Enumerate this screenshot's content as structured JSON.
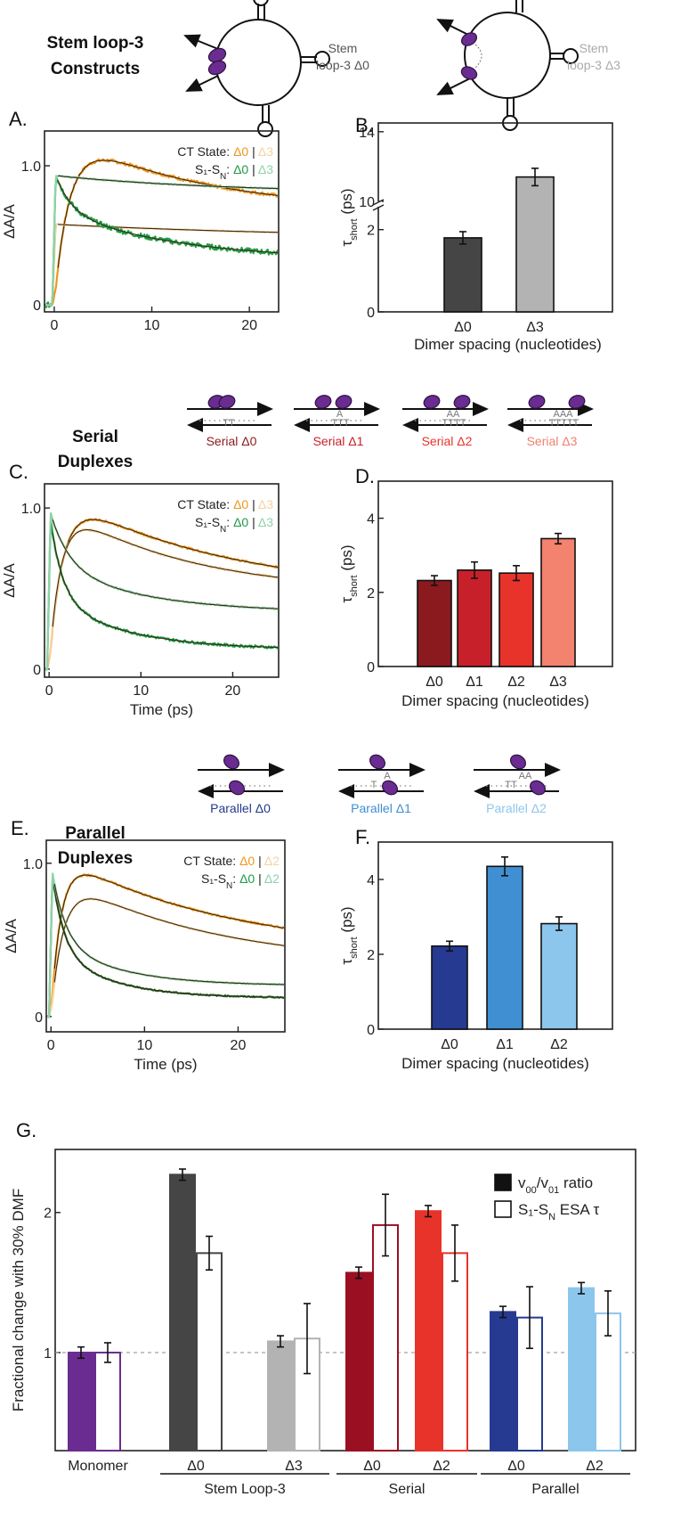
{
  "rows": {
    "stem": {
      "title_line1": "Stem loop-3",
      "title_line2": "Constructs",
      "labels": [
        {
          "line1": "Stem",
          "line2": "loop-3 Δ0",
          "color": "#555555"
        },
        {
          "line1": "Stem",
          "line2": "loop-3 Δ3",
          "color": "#aaaaaa"
        }
      ]
    },
    "serial": {
      "title_line1": "Serial",
      "title_line2": "Duplexes",
      "labels": [
        {
          "text": "Serial Δ0",
          "color": "#8b1a1a"
        },
        {
          "text": "Serial Δ1",
          "color": "#c8202a"
        },
        {
          "text": "Serial Δ2",
          "color": "#e8332b"
        },
        {
          "text": "Serial Δ3",
          "color": "#f08070"
        }
      ],
      "bases": [
        {
          "top": "",
          "bottom": "TT"
        },
        {
          "top": "A",
          "bottom": "TTT"
        },
        {
          "top": "AA",
          "bottom": "TTTT"
        },
        {
          "top": "AAA",
          "bottom": "TTTTT"
        }
      ]
    },
    "parallel": {
      "title_line1": "Parallel",
      "title_line2": "Duplexes",
      "labels": [
        {
          "text": "Parallel Δ0",
          "color": "#233a8c"
        },
        {
          "text": "Parallel Δ1",
          "color": "#3f8fd2"
        },
        {
          "text": "Parallel Δ2",
          "color": "#8cc6ec"
        }
      ],
      "bases": [
        {
          "top": "",
          "bottom": ""
        },
        {
          "top": "A",
          "bottom": "T"
        },
        {
          "top": "AA",
          "bottom": "TT"
        }
      ]
    }
  },
  "chart_data": [
    {
      "id": "A",
      "panel_letter": "A.",
      "type": "line",
      "ylabel": "ΔA/A",
      "xlabel": "",
      "xlim": [
        -1,
        23
      ],
      "ylim": [
        -0.05,
        1.25
      ],
      "xticks": [
        0,
        10,
        20
      ],
      "yticks": [
        {
          "v": 0,
          "label": "0"
        },
        {
          "v": 1.0,
          "label": "1.0"
        }
      ],
      "legend": {
        "row1_label": "CT State:",
        "row2_label": "S₁-S",
        "row2_sub": "N",
        "row2_colon": ":",
        "sep": "|",
        "d0": "Δ0",
        "d3": "Δ3",
        "colors": {
          "ct_d0": "#f0961e",
          "ct_d3": "#f7d2a0",
          "s_d0": "#1f9c45",
          "s_d3": "#8fd3a9"
        }
      },
      "series": [
        {
          "name": "CT Δ0",
          "color": "#f0961e",
          "noise": 0.012,
          "width": 2.2
        },
        {
          "name": "CT Δ3",
          "color": "#f7d2a0",
          "noise": 0.004,
          "width": 2.2
        },
        {
          "name": "S1-SN Δ0",
          "color": "#1f9c45",
          "noise": 0.018,
          "width": 2.2
        },
        {
          "name": "S1-SN Δ3",
          "color": "#8fd3a9",
          "noise": 0.004,
          "width": 2.2
        }
      ],
      "kinetics": {
        "ct0": {
          "rise": 1.6,
          "peak": 1.13,
          "plateau": 0.67,
          "decay": 14
        },
        "ct3": {
          "start": 0.58,
          "end": 0.47,
          "decay": 30
        },
        "s0": {
          "start": 0.92,
          "fast": 0.28,
          "fast_t": 1.5,
          "slow": 0.37,
          "slow_t": 12,
          "end": 0.37
        },
        "s3": {
          "start": 0.93,
          "end": 0.8,
          "decay": 18
        }
      }
    },
    {
      "id": "B",
      "panel_letter": "B.",
      "type": "bar",
      "ylabel_main": "τ",
      "ylabel_sub": "short",
      "ylabel_unit": " (ps)",
      "xlabel": "Dimer spacing (nucleotides)",
      "categories": [
        "Δ0",
        "Δ3"
      ],
      "values": [
        1.8,
        11.4
      ],
      "errors": [
        0.15,
        0.5
      ],
      "colors": [
        "#454545",
        "#b3b3b3"
      ],
      "broken_axis": true,
      "yticks": [
        "0",
        "2",
        "10",
        "14"
      ]
    },
    {
      "id": "C",
      "panel_letter": "C.",
      "type": "line",
      "ylabel": "ΔA/A",
      "xlabel": "Time (ps)",
      "xlim": [
        -0.5,
        25
      ],
      "ylim": [
        -0.05,
        1.15
      ],
      "xticks": [
        0,
        10,
        20
      ],
      "yticks": [
        {
          "v": 0,
          "label": "0"
        },
        {
          "v": 1.0,
          "label": "1.0"
        }
      ],
      "legend": {
        "row1_label": "CT State:",
        "row2_label": "S₁-S",
        "row2_sub": "N",
        "row2_colon": ":",
        "sep": "|",
        "d0": "Δ0",
        "d3": "Δ3",
        "colors": {
          "ct_d0": "#f0961e",
          "ct_d3": "#f7d2a0",
          "s_d0": "#1f9c45",
          "s_d3": "#8fd3a9"
        }
      },
      "series": [
        {
          "name": "CT Δ0",
          "color": "#f0961e"
        },
        {
          "name": "CT Δ3",
          "color": "#f7d2a0"
        },
        {
          "name": "S1-SN Δ0",
          "color": "#1f9c45"
        },
        {
          "name": "S1-SN Δ3",
          "color": "#8fd3a9"
        }
      ]
    },
    {
      "id": "D",
      "panel_letter": "D.",
      "type": "bar",
      "ylabel_main": "τ",
      "ylabel_sub": "short",
      "ylabel_unit": " (ps)",
      "xlabel": "Dimer spacing (nucleotides)",
      "ylim": [
        0,
        5
      ],
      "yticks": [
        0,
        2,
        4
      ],
      "categories": [
        "Δ0",
        "Δ1",
        "Δ2",
        "Δ3"
      ],
      "values": [
        2.32,
        2.6,
        2.52,
        3.45
      ],
      "errors": [
        0.13,
        0.22,
        0.2,
        0.14
      ],
      "colors": [
        "#8b1a1f",
        "#c8202a",
        "#e8332b",
        "#f3826f"
      ]
    },
    {
      "id": "E",
      "panel_letter": "E.",
      "type": "line",
      "ylabel": "ΔA/A",
      "xlabel": "Time (ps)",
      "xlim": [
        -0.5,
        25
      ],
      "ylim": [
        -0.1,
        1.15
      ],
      "xticks": [
        0,
        10,
        20
      ],
      "yticks": [
        {
          "v": 0,
          "label": "0"
        },
        {
          "v": 1.0,
          "label": "1.0"
        }
      ],
      "legend": {
        "row1_label": "CT State:",
        "row2_label": "S₁-S",
        "row2_sub": "N",
        "row2_colon": ":",
        "sep": "|",
        "d0": "Δ0",
        "d3": "Δ2",
        "colors": {
          "ct_d0": "#f0961e",
          "ct_d3": "#f7d2a0",
          "s_d0": "#1f9c45",
          "s_d3": "#8fd3a9"
        }
      },
      "series": [
        {
          "name": "CT Δ0",
          "color": "#f0961e"
        },
        {
          "name": "CT Δ2",
          "color": "#f7d2a0"
        },
        {
          "name": "S1-SN Δ0",
          "color": "#1f6b2e"
        },
        {
          "name": "S1-SN Δ2",
          "color": "#8fd3a9"
        }
      ]
    },
    {
      "id": "F",
      "panel_letter": "F.",
      "type": "bar",
      "ylabel_main": "τ",
      "ylabel_sub": "short",
      "ylabel_unit": " (ps)",
      "xlabel": "Dimer spacing (nucleotides)",
      "ylim": [
        0,
        5
      ],
      "yticks": [
        0,
        2,
        4
      ],
      "categories": [
        "Δ0",
        "Δ1",
        "Δ2"
      ],
      "values": [
        2.22,
        4.35,
        2.82
      ],
      "errors": [
        0.13,
        0.25,
        0.18
      ],
      "colors": [
        "#263a91",
        "#3f8fd2",
        "#8cc6ec"
      ]
    },
    {
      "id": "G",
      "panel_letter": "G.",
      "type": "bar",
      "ylabel": "Fractional  change with 30% DMF",
      "ylim": [
        0.3,
        2.45
      ],
      "yticks": [
        1,
        2
      ],
      "reference_line": 1.0,
      "legend": {
        "filled_main": "v",
        "filled_sub1": "00",
        "filled_mid": "/v",
        "filled_sub2": "01",
        "filled_end": " ratio",
        "open_main": "S₁-S",
        "open_sub": "N",
        "open_end": " ESA τ"
      },
      "categories": [
        "Monomer",
        "Δ0",
        "Δ3",
        "Δ0",
        "Δ2",
        "Δ0",
        "Δ2"
      ],
      "groups": [
        {
          "label": "Stem Loop-3",
          "members": [
            1,
            2
          ]
        },
        {
          "label": "Serial",
          "members": [
            3,
            4
          ]
        },
        {
          "label": "Parallel",
          "members": [
            5,
            6
          ]
        }
      ],
      "colors": [
        "#6a2c91",
        "#454545",
        "#b3b3b3",
        "#9b0f22",
        "#e8332b",
        "#263a91",
        "#8cc6ec"
      ],
      "series": [
        {
          "name": "v00/v01 ratio",
          "fill": "filled",
          "values": [
            1.0,
            2.27,
            1.08,
            1.57,
            2.01,
            1.29,
            1.46
          ],
          "errors": [
            0.04,
            0.04,
            0.04,
            0.04,
            0.04,
            0.04,
            0.04
          ]
        },
        {
          "name": "S1-SN ESA τ",
          "fill": "open",
          "values": [
            1.0,
            1.71,
            1.1,
            1.91,
            1.71,
            1.25,
            1.28
          ],
          "errors": [
            0.07,
            0.12,
            0.25,
            0.22,
            0.2,
            0.22,
            0.16
          ]
        }
      ]
    }
  ]
}
